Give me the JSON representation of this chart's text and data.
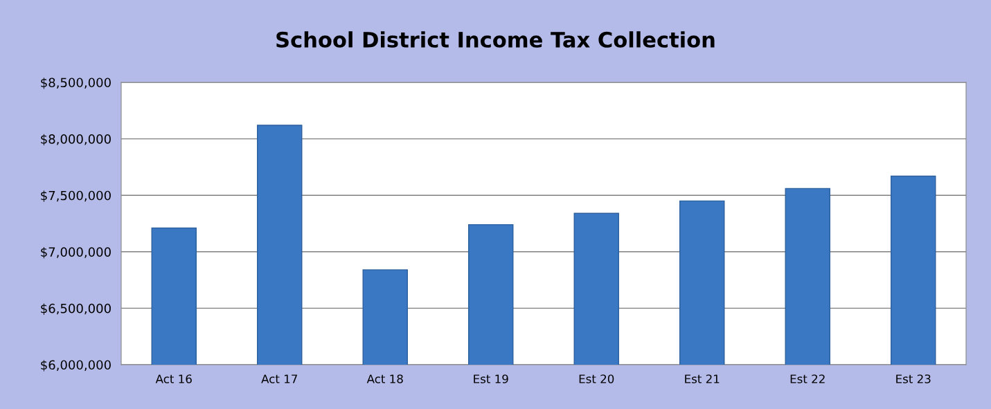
{
  "chart_data": {
    "type": "bar",
    "title": "School District Income Tax Collection",
    "categories": [
      "Act 16",
      "Act 17",
      "Act 18",
      "Est 19",
      "Est 20",
      "Est 21",
      "Est 22",
      "Est 23"
    ],
    "values": [
      7210000,
      8120000,
      6840000,
      7240000,
      7340000,
      7450000,
      7560000,
      7670000
    ],
    "color": "#3a78c4",
    "ylim": [
      6000000,
      8500000
    ],
    "yticks": [
      {
        "value": 6000000,
        "label": "$6,000,000"
      },
      {
        "value": 6500000,
        "label": "$6,500,000"
      },
      {
        "value": 7000000,
        "label": "$7,000,000"
      },
      {
        "value": 7500000,
        "label": "$7,500,000"
      },
      {
        "value": 8000000,
        "label": "$8,000,000"
      },
      {
        "value": 8500000,
        "label": "$8,500,000"
      }
    ],
    "grid": "y"
  }
}
